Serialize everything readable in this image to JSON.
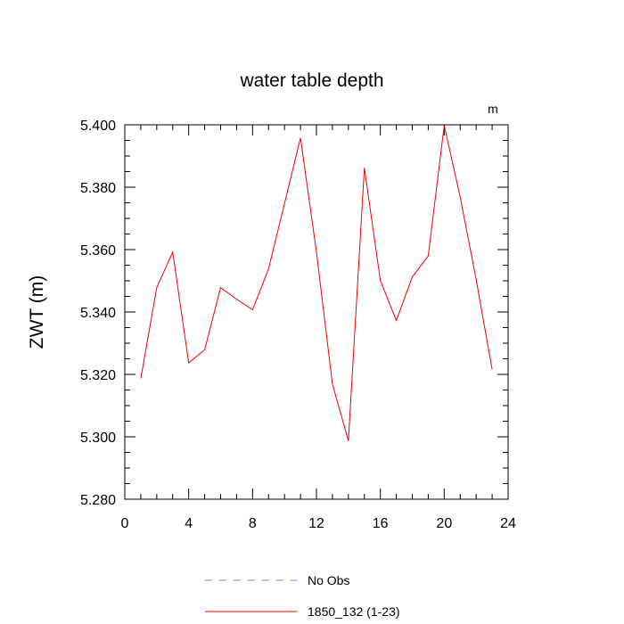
{
  "chart_data": {
    "type": "line",
    "title": "water table depth",
    "ylabel": "ZWT  (m)",
    "xlabel": "",
    "units_label": "m",
    "xlim": [
      0,
      24
    ],
    "ylim": [
      5.28,
      5.4
    ],
    "x_ticks": [
      0,
      4,
      8,
      12,
      16,
      20,
      24
    ],
    "x_tick_labels": [
      "0",
      "4",
      "8",
      "12",
      "16",
      "20",
      "24"
    ],
    "y_ticks": [
      5.28,
      5.3,
      5.32,
      5.34,
      5.36,
      5.38,
      5.4
    ],
    "y_tick_labels": [
      "5.280",
      "5.300",
      "5.320",
      "5.340",
      "5.360",
      "5.380",
      "5.400"
    ],
    "grid": false,
    "legend_position": "bottom",
    "series": [
      {
        "name": "No Obs",
        "color": "#7777ee",
        "style": "dashed",
        "x": [],
        "y": []
      },
      {
        "name": "1850_132 (1-23)",
        "color": "#ee0000",
        "style": "solid",
        "x": [
          1,
          2,
          3,
          4,
          5,
          6,
          7,
          8,
          9,
          10,
          11,
          12,
          13,
          14,
          15,
          16,
          17,
          18,
          19,
          20,
          21,
          22,
          23
        ],
        "y": [
          5.3187,
          5.3478,
          5.3592,
          5.3237,
          5.3279,
          5.3478,
          5.3441,
          5.3407,
          5.3538,
          5.3748,
          5.3958,
          5.3592,
          5.3169,
          5.2987,
          5.3862,
          5.3501,
          5.3373,
          5.3512,
          5.358,
          5.3998,
          5.3768,
          5.3504,
          5.3216
        ]
      }
    ]
  }
}
